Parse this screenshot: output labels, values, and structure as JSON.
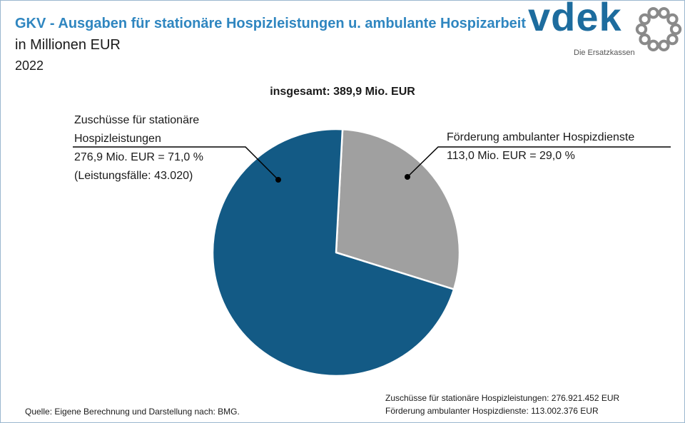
{
  "header": {
    "title": "GKV - Ausgaben für stationäre Hospizleistungen u. ambulante Hospizarbeit",
    "subtitle": "in Millionen EUR",
    "year": "2022"
  },
  "logo": {
    "text": "vdek",
    "tagline": "Die Ersatzkassen",
    "ring_color": "#8a8a8a"
  },
  "total_label": "insgesamt:  389,9  Mio. EUR",
  "labels": {
    "stationaer": {
      "line1": "Zuschüsse für stationäre",
      "line2": "Hospizleistungen",
      "line3": "276,9  Mio. EUR =  71,0 %",
      "line4": "(Leistungsfälle:  43.020)"
    },
    "ambulant": {
      "line1": "Förderung ambulanter Hospizdienste",
      "line2": "113,0  Mio. EUR =  29,0 %"
    }
  },
  "footer": {
    "source": "Quelle: Eigene Berechnung und Darstellung nach: BMG.",
    "detail1": "Zuschüsse für stationäre Hospizleistungen: 276.921.452 EUR",
    "detail2": "Förderung ambulanter Hospizdienste: 113.002.376 EUR"
  },
  "chart_data": {
    "type": "pie",
    "title": "GKV - Ausgaben für stationäre Hospizleistungen u. ambulante Hospizarbeit",
    "unit": "Mio. EUR",
    "total": 389.9,
    "slices": [
      {
        "name": "Förderung ambulanter Hospizdienste",
        "value": 113.0,
        "percent": 29.0,
        "color": "#a0a0a0"
      },
      {
        "name": "Zuschüsse für stationäre Hospizleistungen",
        "value": 276.9,
        "percent": 71.0,
        "color": "#135a85"
      }
    ]
  }
}
